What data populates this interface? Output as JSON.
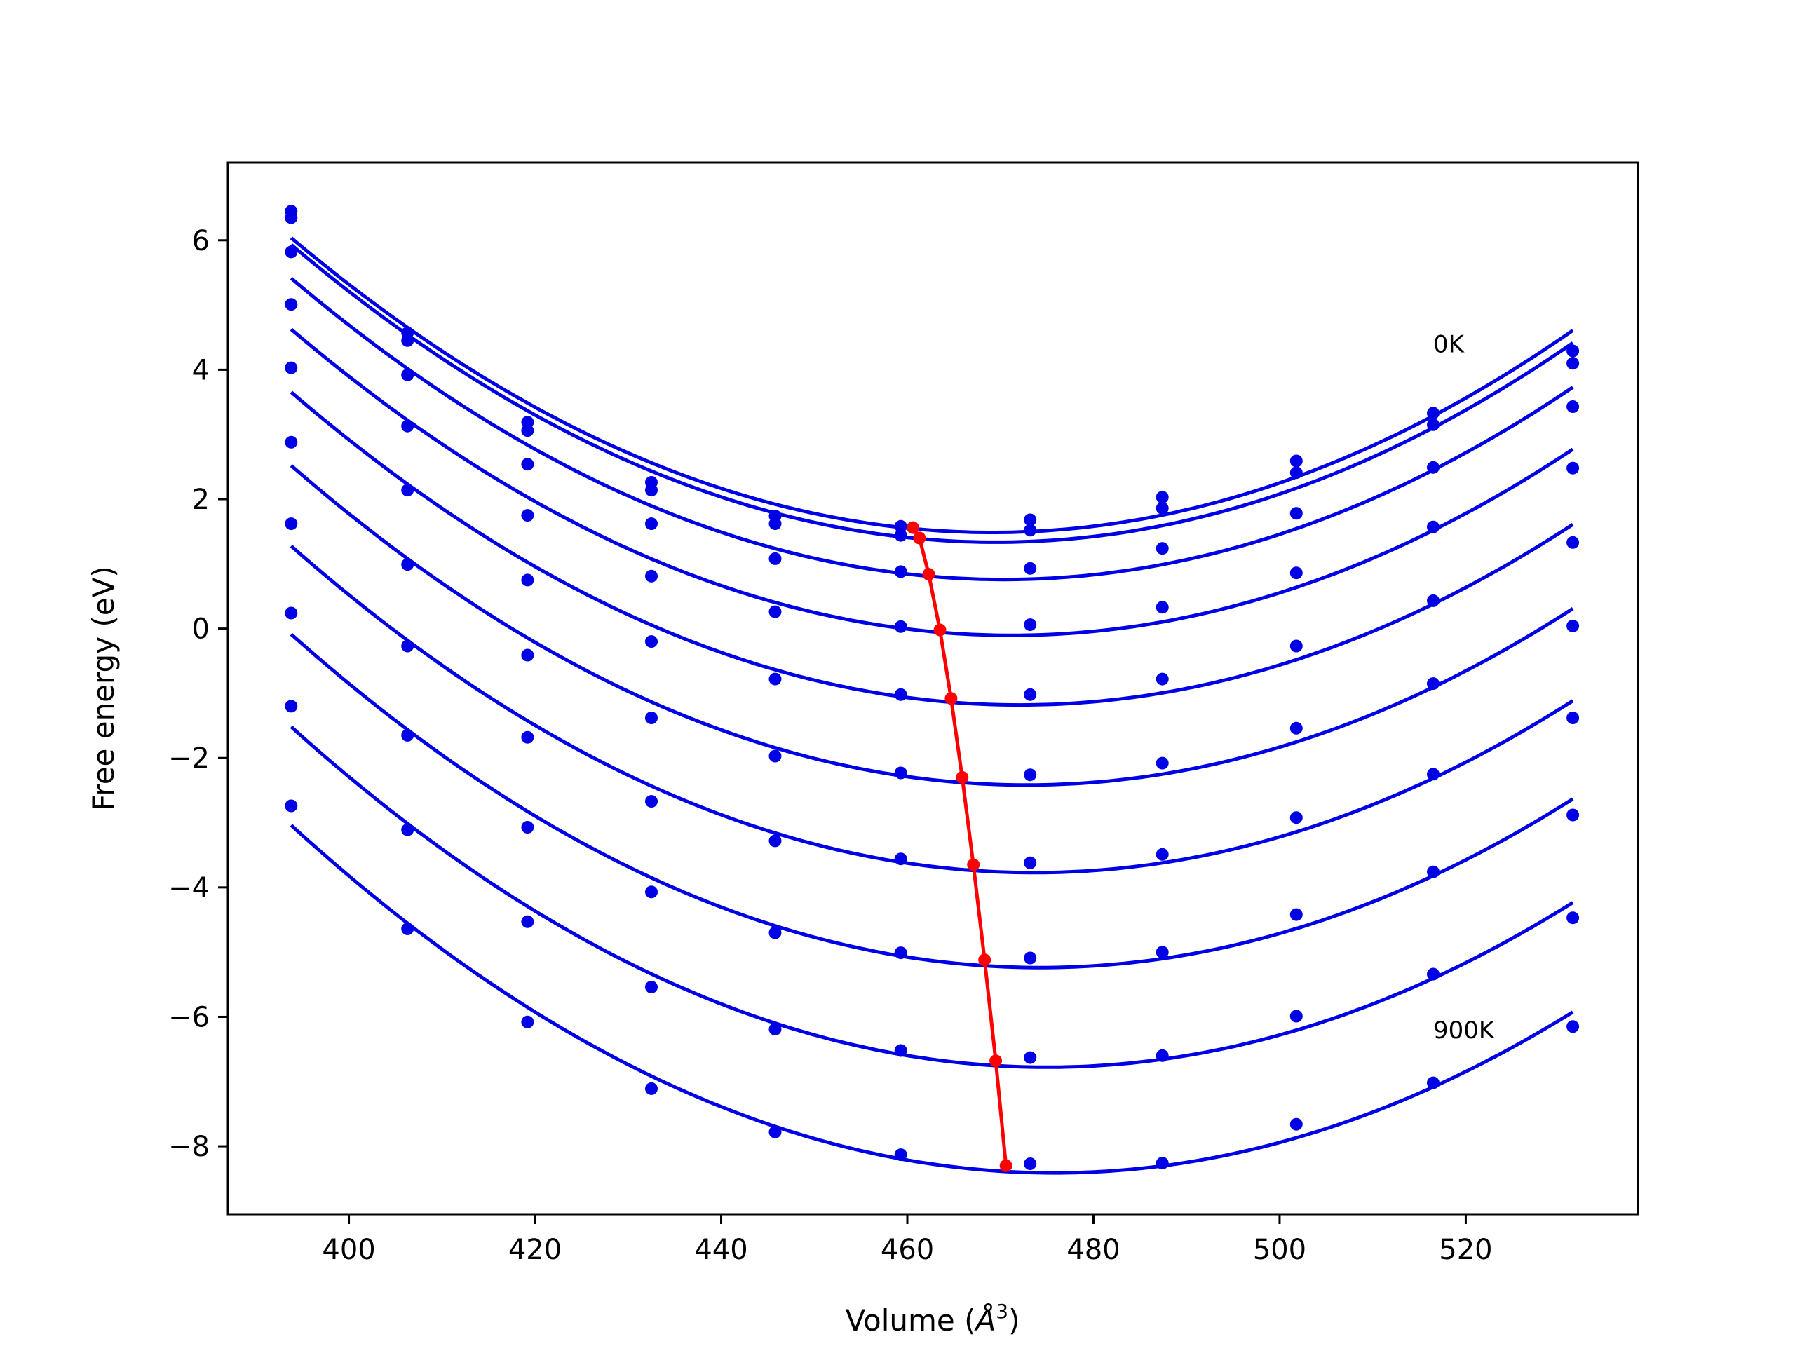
{
  "chart_data": {
    "type": "line",
    "xlabel": "Volume (",
    "xlabel_unit": "Å",
    "xlabel_exp": "3",
    "xlabel_close": ")",
    "ylabel": "Free energy (eV)",
    "xlim": [
      387,
      538.5
    ],
    "ylim": [
      -9.05,
      7.2
    ],
    "xticks": [
      400,
      420,
      440,
      460,
      480,
      500,
      520
    ],
    "yticks": [
      6,
      4,
      2,
      0,
      -2,
      -4,
      -6,
      -8
    ],
    "ytick_labels": [
      "6",
      "4",
      "2",
      "0",
      "−2",
      "−4",
      "−6",
      "−8"
    ],
    "grid": false,
    "annotations": [
      {
        "text": "0K",
        "x": 516.5,
        "y": 4.4
      },
      {
        "text": "900K",
        "x": 516.5,
        "y": -6.2
      }
    ],
    "colors": {
      "curves": "#0000e6",
      "equilibrium": "#ff0000"
    },
    "volumes": [
      393.8,
      406.3,
      419.2,
      432.5,
      445.8,
      459.3,
      473.2,
      487.4,
      501.8,
      516.5,
      531.5
    ],
    "series": [
      {
        "points": [
          6.45,
          4.57,
          3.19,
          2.26,
          1.74,
          1.58,
          1.68,
          2.03,
          2.59,
          3.33,
          4.29
        ]
      },
      {
        "points": [
          6.35,
          4.45,
          3.06,
          2.14,
          1.62,
          1.44,
          1.52,
          1.86,
          2.41,
          3.15,
          4.1
        ]
      },
      {
        "points": [
          5.82,
          3.92,
          2.54,
          1.62,
          1.08,
          0.88,
          0.93,
          1.24,
          1.78,
          2.49,
          3.43
        ]
      },
      {
        "points": [
          5.01,
          3.13,
          1.75,
          0.81,
          0.26,
          0.03,
          0.06,
          0.33,
          0.86,
          1.57,
          2.48
        ]
      },
      {
        "points": [
          4.03,
          2.14,
          0.75,
          -0.2,
          -0.78,
          -1.02,
          -1.02,
          -0.78,
          -0.27,
          0.43,
          1.33
        ]
      },
      {
        "points": [
          2.88,
          0.99,
          -0.41,
          -1.38,
          -1.97,
          -2.23,
          -2.26,
          -2.08,
          -1.54,
          -0.85,
          0.04
        ]
      },
      {
        "points": [
          1.62,
          -0.27,
          -1.68,
          -2.67,
          -3.28,
          -3.56,
          -3.62,
          -3.49,
          -2.92,
          -2.25,
          -1.38
        ]
      },
      {
        "points": [
          0.24,
          -1.65,
          -3.07,
          -4.07,
          -4.7,
          -5.01,
          -5.09,
          -5.0,
          -4.42,
          -3.76,
          -2.88
        ]
      },
      {
        "points": [
          -1.2,
          -3.11,
          -4.53,
          -5.54,
          -6.19,
          -6.52,
          -6.63,
          -6.6,
          -5.99,
          -5.34,
          -4.47
        ]
      },
      {
        "points": [
          -2.74,
          -4.64,
          -6.08,
          -7.11,
          -7.78,
          -8.13,
          -8.27,
          -8.26,
          -7.66,
          -7.02,
          -6.15
        ]
      }
    ],
    "equilibrium": {
      "x": [
        460.6,
        461.3,
        462.3,
        463.5,
        464.7,
        465.9,
        467.1,
        468.3,
        469.5,
        470.6
      ],
      "y": [
        1.56,
        1.4,
        0.84,
        -0.02,
        -1.08,
        -2.3,
        -3.65,
        -5.12,
        -6.68,
        -8.3
      ]
    }
  }
}
